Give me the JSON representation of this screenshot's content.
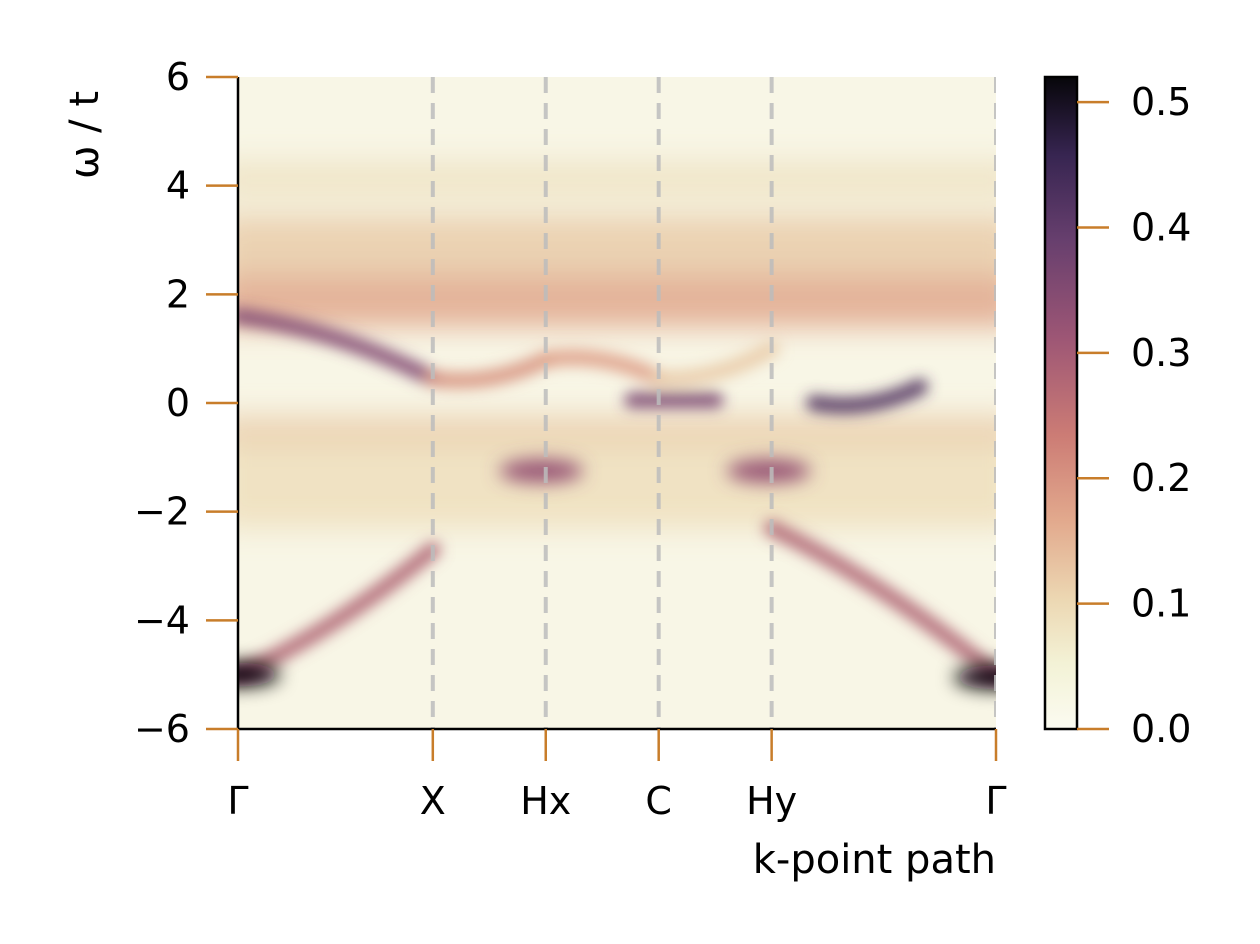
{
  "chart_data": {
    "type": "heatmap",
    "title": "",
    "xlabel": "k-point path",
    "ylabel": "ω / t",
    "ylim": [
      -6,
      6
    ],
    "yticks": [
      {
        "value": 6,
        "label": "6"
      },
      {
        "value": 4,
        "label": "4"
      },
      {
        "value": 2,
        "label": "2"
      },
      {
        "value": 0,
        "label": "0"
      },
      {
        "value": -2,
        "label": "−2"
      },
      {
        "value": -4,
        "label": "−4"
      },
      {
        "value": -6,
        "label": "−6"
      }
    ],
    "xlim": [
      0,
      1
    ],
    "kpoints": [
      {
        "label": "Γ",
        "pos": 0.0
      },
      {
        "label": "X",
        "pos": 0.257
      },
      {
        "label": "Hx",
        "pos": 0.406
      },
      {
        "label": "C",
        "pos": 0.555
      },
      {
        "label": "Hy",
        "pos": 0.704
      },
      {
        "label": "Γ",
        "pos": 1.0
      }
    ],
    "colorbar": {
      "range": [
        0.0,
        0.52
      ],
      "ticks": [
        {
          "value": 0.0,
          "label": "0.0"
        },
        {
          "value": 0.1,
          "label": "0.1"
        },
        {
          "value": 0.2,
          "label": "0.2"
        },
        {
          "value": 0.3,
          "label": "0.3"
        },
        {
          "value": 0.4,
          "label": "0.4"
        },
        {
          "value": 0.5,
          "label": "0.5"
        }
      ],
      "colormap": "pink-purple-black"
    },
    "features": [
      {
        "k_from": 0.0,
        "k_to": 0.257,
        "omega_from": 1.6,
        "omega_to": 0.45,
        "intensity": 0.35
      },
      {
        "k_from": 0.257,
        "k_to": 0.406,
        "omega_from": 0.45,
        "omega_to": 0.8,
        "intensity": 0.2
      },
      {
        "k_from": 0.406,
        "k_to": 0.555,
        "omega_from": 0.8,
        "omega_to": 0.45,
        "intensity": 0.18
      },
      {
        "k_from": 0.555,
        "k_to": 0.704,
        "omega_from": 0.45,
        "omega_to": 1.0,
        "intensity": 0.12
      },
      {
        "k_from": 0.0,
        "k_to": 0.257,
        "omega_from": -5.0,
        "omega_to": -2.7,
        "intensity": 0.28
      },
      {
        "k_from": 0.704,
        "k_to": 1.0,
        "omega_from": -2.3,
        "omega_to": -5.0,
        "intensity": 0.28
      },
      {
        "k_from": 0.52,
        "k_to": 0.63,
        "omega_from": 0.05,
        "omega_to": 0.05,
        "intensity": 0.36
      },
      {
        "k_from": 0.76,
        "k_to": 0.9,
        "omega_from": 0.0,
        "omega_to": 0.3,
        "intensity": 0.42
      }
    ],
    "spots": [
      {
        "k": 0.0,
        "omega": -5.0,
        "intensity": 0.52
      },
      {
        "k": 1.0,
        "omega": -5.05,
        "intensity": 0.52
      },
      {
        "k": 0.4,
        "omega": -1.25,
        "intensity": 0.32
      },
      {
        "k": 0.7,
        "omega": -1.25,
        "intensity": 0.32
      }
    ]
  }
}
